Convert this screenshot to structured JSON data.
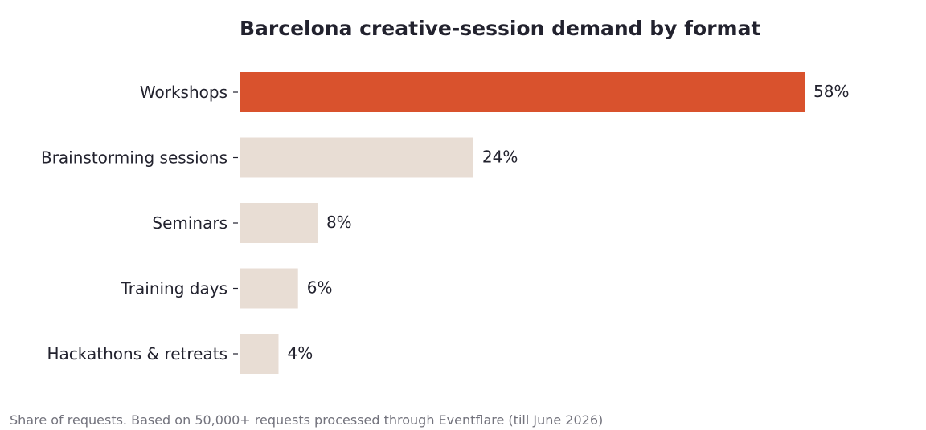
{
  "chart_data": {
    "type": "bar",
    "orientation": "horizontal",
    "title": "Barcelona creative-session demand by format",
    "categories": [
      "Workshops",
      "Brainstorming sessions",
      "Seminars",
      "Training days",
      "Hackathons & retreats"
    ],
    "values": [
      58,
      24,
      8,
      6,
      4
    ],
    "value_labels": [
      "58%",
      "24%",
      "8%",
      "6%",
      "4%"
    ],
    "highlight_index": 0,
    "xlim": [
      0,
      64
    ],
    "grid": false,
    "xlabel": "",
    "ylabel": "",
    "colors": {
      "highlight": "#d9522d",
      "base": "#e8ddd4",
      "text": "#22222e",
      "footnote": "#73737d"
    }
  },
  "footnote": "Share of requests. Based on 50,000+ requests processed through Eventflare (till June 2026)"
}
